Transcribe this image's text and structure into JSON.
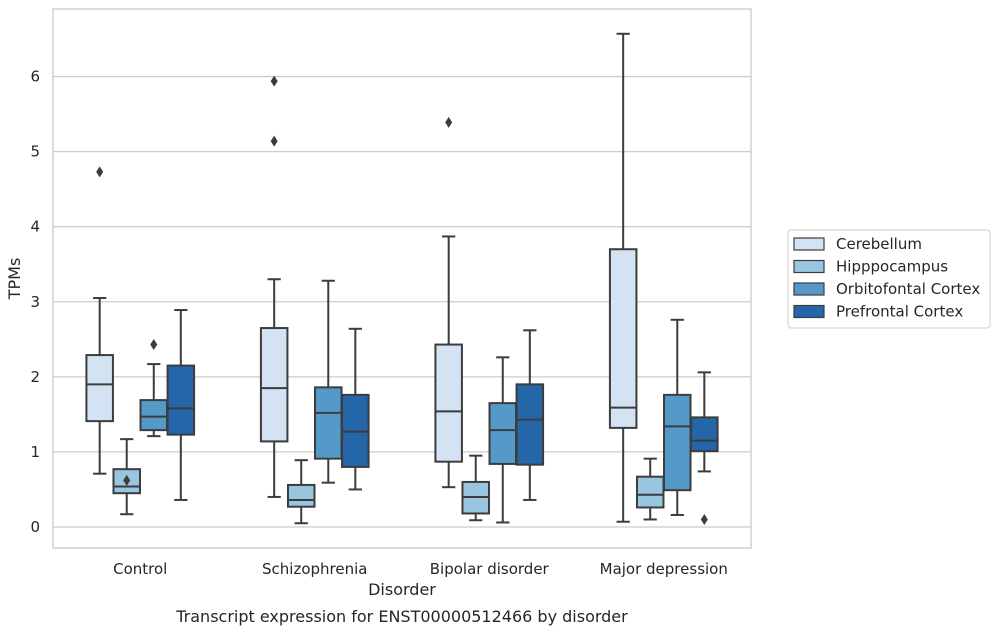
{
  "chart_data": {
    "type": "boxplot",
    "xlabel": "Disorder",
    "ylabel": "TPMs",
    "caption": "Transcript expression for ENST00000512466 by disorder",
    "ylim": [
      -0.28,
      6.9
    ],
    "yticks": [
      0,
      1,
      2,
      3,
      4,
      5,
      6
    ],
    "grid": "horizontal",
    "legend_position": "right",
    "categories": [
      "Control",
      "Schizophrenia",
      "Bipolar disorder",
      "Major depression"
    ],
    "series": [
      {
        "name": "Cerebellum",
        "color": "#d3e3f3",
        "boxes": [
          {
            "whislo": 0.71,
            "q1": 1.41,
            "med": 1.9,
            "q3": 2.29,
            "whishi": 3.05,
            "fliers": [
              4.73
            ]
          },
          {
            "whislo": 0.4,
            "q1": 1.14,
            "med": 1.85,
            "q3": 2.65,
            "whishi": 3.3,
            "fliers": [
              5.14,
              5.94
            ]
          },
          {
            "whislo": 0.53,
            "q1": 0.87,
            "med": 1.54,
            "q3": 2.43,
            "whishi": 3.87,
            "fliers": [
              5.39
            ]
          },
          {
            "whislo": 0.07,
            "q1": 1.32,
            "med": 1.59,
            "q3": 3.7,
            "whishi": 6.57,
            "fliers": []
          }
        ]
      },
      {
        "name": "Hipppocampus",
        "color": "#9ac5e0",
        "boxes": [
          {
            "whislo": 0.17,
            "q1": 0.45,
            "med": 0.54,
            "q3": 0.77,
            "whishi": 1.17,
            "fliers": [
              0.62
            ]
          },
          {
            "whislo": 0.05,
            "q1": 0.27,
            "med": 0.36,
            "q3": 0.56,
            "whishi": 0.89,
            "fliers": []
          },
          {
            "whislo": 0.09,
            "q1": 0.18,
            "med": 0.4,
            "q3": 0.6,
            "whishi": 0.95,
            "fliers": []
          },
          {
            "whislo": 0.1,
            "q1": 0.26,
            "med": 0.43,
            "q3": 0.67,
            "whishi": 0.91,
            "fliers": []
          }
        ]
      },
      {
        "name": "Orbitofontal Cortex",
        "color": "#5599c8",
        "boxes": [
          {
            "whislo": 1.21,
            "q1": 1.29,
            "med": 1.47,
            "q3": 1.69,
            "whishi": 2.17,
            "fliers": [
              2.43
            ]
          },
          {
            "whislo": 0.59,
            "q1": 0.91,
            "med": 1.52,
            "q3": 1.86,
            "whishi": 3.28,
            "fliers": []
          },
          {
            "whislo": 0.06,
            "q1": 0.84,
            "med": 1.29,
            "q3": 1.65,
            "whishi": 2.26,
            "fliers": []
          },
          {
            "whislo": 0.16,
            "q1": 0.49,
            "med": 1.34,
            "q3": 1.76,
            "whishi": 2.76,
            "fliers": []
          }
        ]
      },
      {
        "name": "Prefrontal Cortex",
        "color": "#2566a9",
        "boxes": [
          {
            "whislo": 0.36,
            "q1": 1.23,
            "med": 1.58,
            "q3": 2.15,
            "whishi": 2.89,
            "fliers": []
          },
          {
            "whislo": 0.5,
            "q1": 0.8,
            "med": 1.27,
            "q3": 1.76,
            "whishi": 2.64,
            "fliers": []
          },
          {
            "whislo": 0.36,
            "q1": 0.83,
            "med": 1.43,
            "q3": 1.9,
            "whishi": 2.62,
            "fliers": []
          },
          {
            "whislo": 0.74,
            "q1": 1.01,
            "med": 1.15,
            "q3": 1.46,
            "whishi": 2.06,
            "fliers": [
              0.1
            ]
          }
        ]
      }
    ]
  }
}
